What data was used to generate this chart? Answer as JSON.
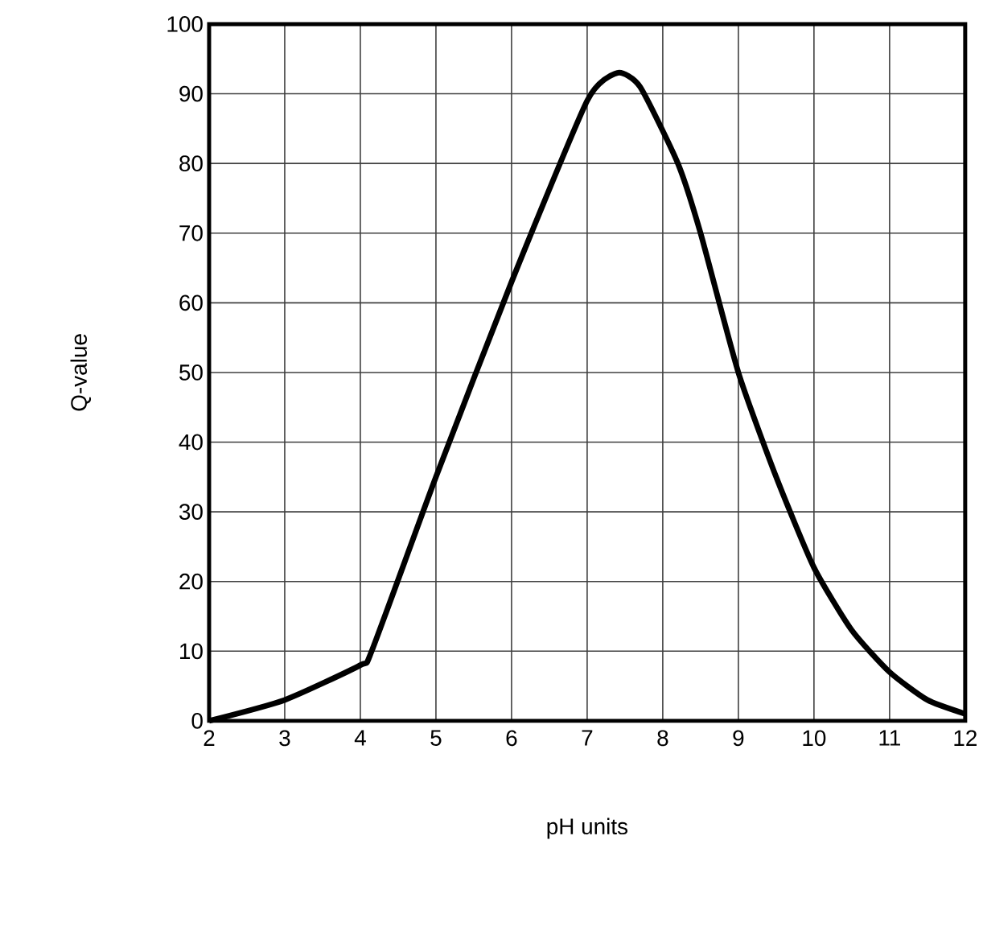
{
  "chart_data": {
    "type": "line",
    "xlabel": "pH units",
    "ylabel": "Q-value",
    "color": "#000000",
    "x": [
      2,
      3,
      4,
      4.15,
      5,
      6,
      7,
      7.4,
      7.7,
      8.2,
      8.5,
      9,
      9.5,
      10,
      10.5,
      11,
      11.5,
      12
    ],
    "values": [
      0,
      3,
      8,
      10,
      35,
      63,
      89,
      93,
      91,
      80,
      70,
      50,
      35,
      22,
      13,
      7,
      3,
      1
    ],
    "xlim": [
      2,
      12
    ],
    "ylim": [
      0,
      100
    ],
    "xticks": [
      2,
      3,
      4,
      5,
      6,
      7,
      8,
      9,
      10,
      11,
      12
    ],
    "yticks": [
      0,
      10,
      20,
      30,
      40,
      50,
      60,
      70,
      80,
      90,
      100
    ],
    "grid": true,
    "marker": "none",
    "line_style": "solid"
  }
}
